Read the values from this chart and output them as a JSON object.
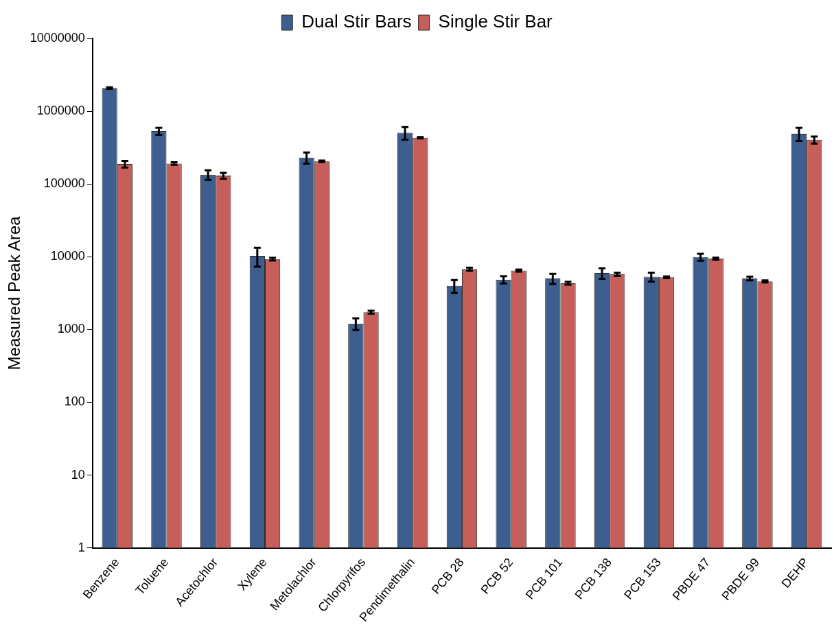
{
  "chart_data": {
    "type": "bar",
    "ylabel": "Measured Peak Area",
    "categories": [
      "Benzene",
      "Toluene",
      "Acetochlor",
      "Xylene",
      "Metolachlor",
      "Chlorpyrifos",
      "Pendimethalin",
      "PCB 28",
      "PCB 52",
      "PCB 101",
      "PCB 138",
      "PCB 153",
      "PBDE 47",
      "PBDE 99",
      "DEHP"
    ],
    "series": [
      {
        "name": "Dual Stir Bars",
        "color": "#3d5f8f",
        "values": [
          2080000,
          533000,
          134000,
          10300,
          231000,
          1210,
          506000,
          3990,
          4850,
          5030,
          5980,
          5310,
          9890,
          5030,
          491000
        ],
        "errors": [
          50000,
          60000,
          20000,
          3000,
          40000,
          220,
          100000,
          800,
          550,
          800,
          1000,
          750,
          1100,
          300,
          100000
        ]
      },
      {
        "name": "Single Stir Bar",
        "color": "#c65e5a",
        "values": [
          188000,
          191000,
          130000,
          9290,
          205000,
          1730,
          432000,
          6760,
          6450,
          4330,
          5730,
          5220,
          9430,
          4580,
          404000
        ],
        "errors": [
          20000,
          8000,
          12000,
          400,
          5000,
          80,
          10000,
          300,
          200,
          200,
          300,
          150,
          300,
          150,
          45000
        ]
      }
    ],
    "log": true,
    "ylim": [
      1,
      10000000
    ],
    "yticks": [
      1,
      10,
      100,
      1000,
      10000,
      100000,
      1000000,
      10000000
    ],
    "grid": false,
    "legend": "top"
  }
}
